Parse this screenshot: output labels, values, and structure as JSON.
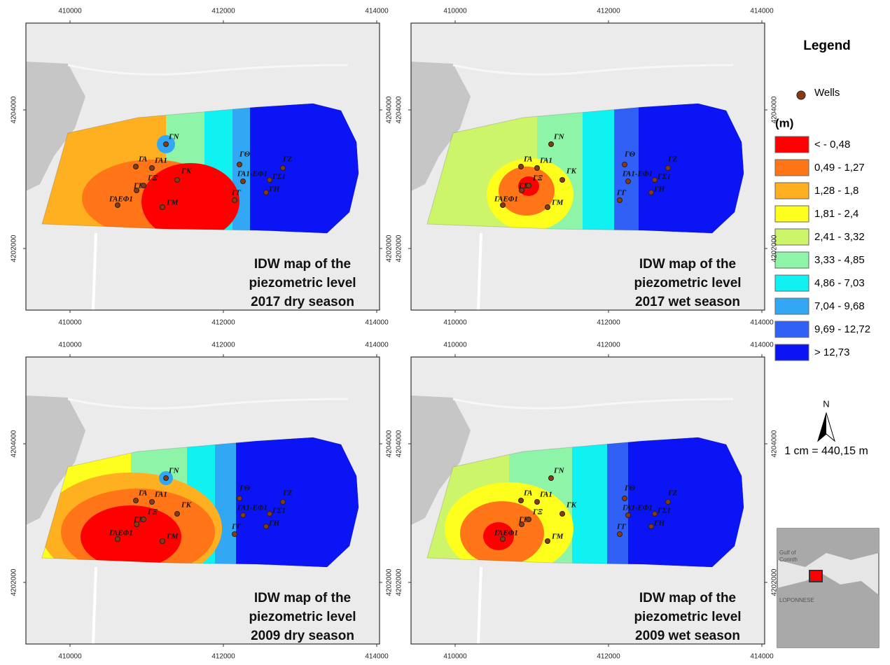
{
  "x_ticks": [
    410000,
    412000,
    414000
  ],
  "y_ticks": [
    4204000,
    4202000
  ],
  "panels": [
    {
      "title": [
        "IDW map of the",
        "piezometric level",
        "2017 dry season"
      ]
    },
    {
      "title": [
        "IDW map of the",
        "piezometric level",
        "2017 wet season"
      ]
    },
    {
      "title": [
        "IDW map of the",
        "piezometric level",
        "2009 dry season"
      ]
    },
    {
      "title": [
        "IDW map of the",
        "piezometric level",
        "2009 wet season"
      ]
    }
  ],
  "wells": [
    {
      "label": "ΓΝ"
    },
    {
      "label": "ΓΑ"
    },
    {
      "label": "ΓΑ1"
    },
    {
      "label": "ΓΚ"
    },
    {
      "label": "ΓΒ"
    },
    {
      "label": "ΓΞ"
    },
    {
      "label": "ΓΑΕΦ1"
    },
    {
      "label": "ΓΜ"
    },
    {
      "label": "ΓΘ"
    },
    {
      "label": "ΓΑ1-ΕΦ1"
    },
    {
      "label": "ΓΖ"
    },
    {
      "label": "ΓΣ1"
    },
    {
      "label": "ΓΗ"
    },
    {
      "label": "ΓΓ"
    }
  ],
  "legend": {
    "title": "Legend",
    "wells_label": "Wells",
    "unit": "(m)",
    "classes": [
      {
        "label": "< - 0,48",
        "color": "#ff0000"
      },
      {
        "label": "0,49 - 1,27",
        "color": "#ff7518"
      },
      {
        "label": "1,28 - 1,8",
        "color": "#ffb020"
      },
      {
        "label": "1,81 - 2,4",
        "color": "#ffff1e"
      },
      {
        "label": "2,41 - 3,32",
        "color": "#ccf56a"
      },
      {
        "label": "3,33 - 4,85",
        "color": "#8ef5a8"
      },
      {
        "label": "4,86 - 7,03",
        "color": "#10f2f2"
      },
      {
        "label": "7,04 - 9,68",
        "color": "#32a8f5"
      },
      {
        "label": "9,69 - 12,72",
        "color": "#3060f5"
      },
      {
        "label": "> 12,73",
        "color": "#0a14f5"
      }
    ]
  },
  "north": "N",
  "scale": "1 cm = 440,15 m",
  "inset": {
    "labels": [
      "Gulf of",
      "Corinth",
      "LOPONNESE"
    ]
  }
}
